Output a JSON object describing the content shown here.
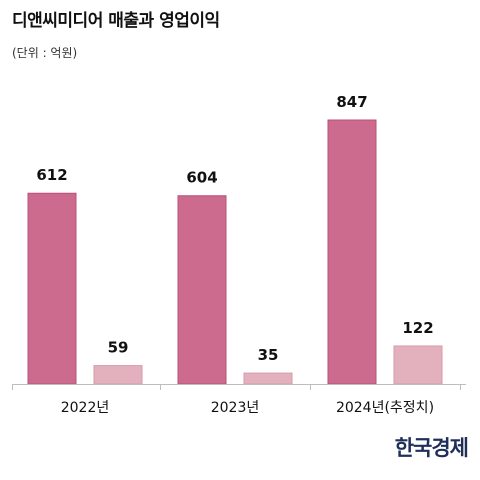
{
  "header": {
    "title": "디앤씨미디어 매출과 영업이익",
    "unit": "(단위 : 억원)"
  },
  "footer": {
    "logo": "한국경제"
  },
  "chart_data": {
    "type": "bar",
    "title": "디앤씨미디어 매출과 영업이익",
    "categories": [
      "2022년",
      "2023년",
      "2024년(추정치)"
    ],
    "series": [
      {
        "values": [
          612,
          604,
          847
        ],
        "color": "#cc6b8e"
      },
      {
        "values": [
          59,
          35,
          122
        ],
        "color": "#e3b1be"
      }
    ],
    "ylim": [
      0,
      900
    ],
    "grid": false,
    "legend": "none",
    "data_labels": true
  }
}
